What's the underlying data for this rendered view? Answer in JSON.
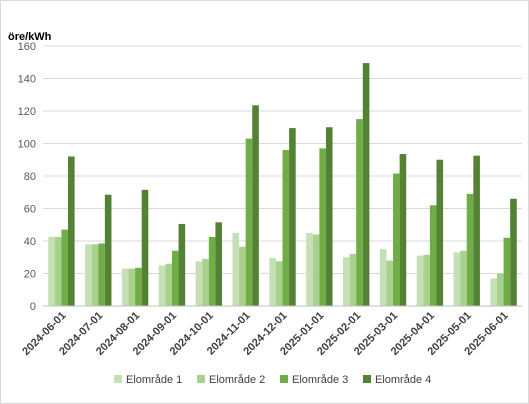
{
  "chart_data": {
    "type": "bar",
    "ylabel": "öre/kWh",
    "ylim": [
      0,
      160
    ],
    "yticks": [
      0,
      20,
      40,
      60,
      80,
      100,
      120,
      140,
      160
    ],
    "grid": true,
    "legend_position": "bottom",
    "categories": [
      "2024-06-01",
      "2024-07-01",
      "2024-08-01",
      "2024-09-01",
      "2024-10-01",
      "2024-11-01",
      "2024-12-01",
      "2025-01-01",
      "2025-02-01",
      "2025-03-01",
      "2025-04-01",
      "2025-05-01",
      "2025-06-01"
    ],
    "series": [
      {
        "name": "Elområde 1",
        "color": "#c5e0b4",
        "values": [
          42.5,
          38,
          23,
          25,
          27.5,
          45,
          29.5,
          45,
          30,
          35,
          31,
          33,
          17
        ]
      },
      {
        "name": "Elområde 2",
        "color": "#a9d18e",
        "values": [
          42.5,
          38,
          23,
          26,
          29,
          36.5,
          27.5,
          44,
          32,
          28,
          31.5,
          34,
          20
        ]
      },
      {
        "name": "Elområde 3",
        "color": "#70ad47",
        "values": [
          47,
          38.5,
          23.5,
          34,
          42.5,
          103,
          96,
          97,
          115,
          81.5,
          62,
          69,
          42
        ]
      },
      {
        "name": "Elområde 4",
        "color": "#548235",
        "values": [
          92,
          68.5,
          71.5,
          50.5,
          51.5,
          123.5,
          109.5,
          110,
          149.5,
          93.5,
          90,
          92.5,
          66
        ]
      }
    ]
  }
}
